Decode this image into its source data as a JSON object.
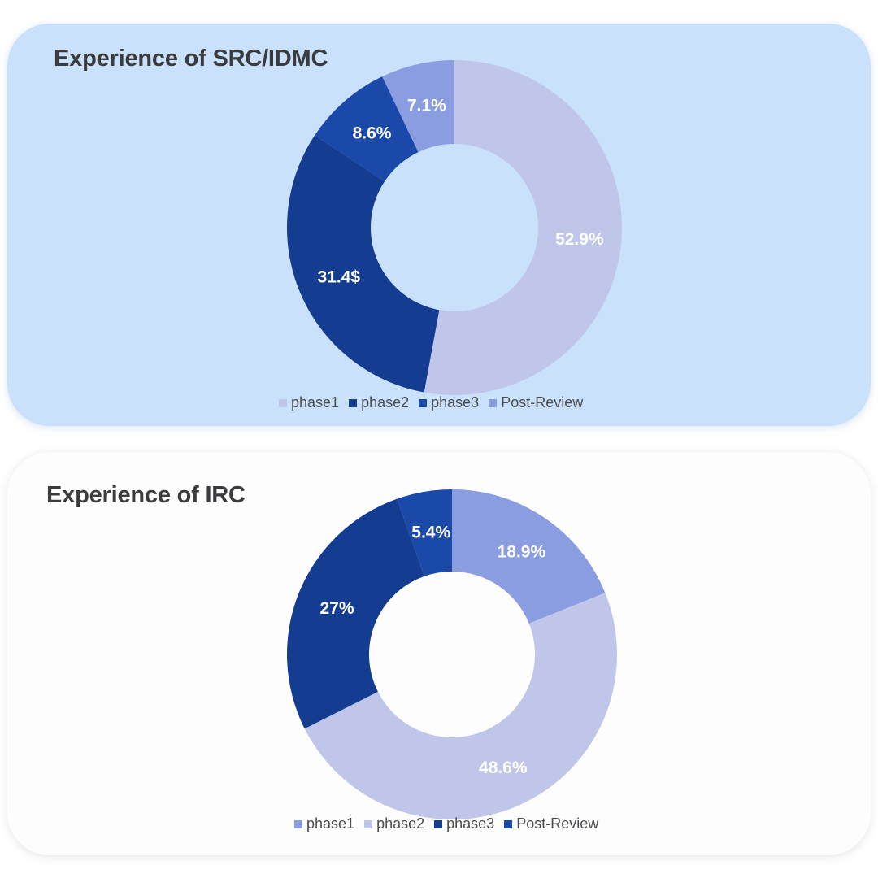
{
  "chart_data": [
    {
      "type": "pie",
      "donut": true,
      "title": "Experience of SRC/IDMC",
      "categories": [
        "phase1",
        "phase2",
        "phase3",
        "Post-Review"
      ],
      "values": [
        52.9,
        31.4,
        8.6,
        7.1
      ],
      "data_labels": [
        "52.9%",
        "31.4$",
        "8.6%",
        "7.1%"
      ],
      "colors": [
        "#c0c6e9",
        "#143c90",
        "#1a49aa",
        "#8a9de0"
      ],
      "legend": "bottom",
      "background": "#cae1fc"
    },
    {
      "type": "pie",
      "donut": true,
      "title": "Experience of IRC",
      "categories": [
        "phase1",
        "phase2",
        "phase3",
        "Post-Review"
      ],
      "values": [
        18.9,
        48.6,
        27,
        5.4
      ],
      "data_labels": [
        "18.9%",
        "48.6%",
        "27%",
        "5.4%"
      ],
      "colors": [
        "#8a9de0",
        "#c0c6e9",
        "#143c90",
        "#1a49aa"
      ],
      "legend": "bottom",
      "background": "#fdfdfe"
    }
  ]
}
